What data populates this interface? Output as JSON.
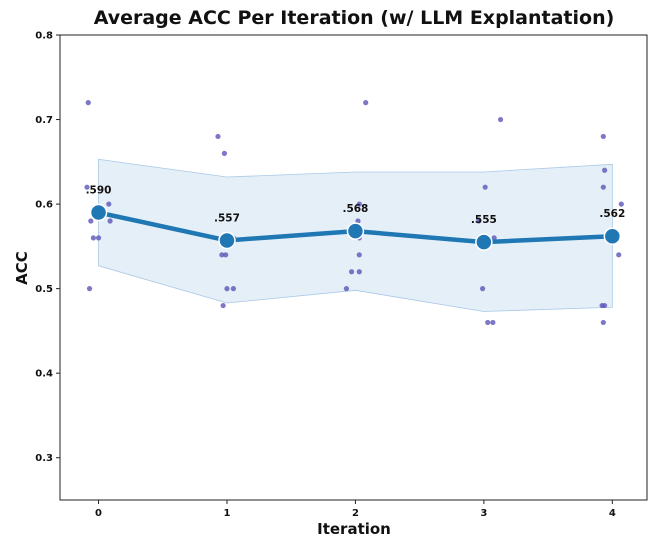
{
  "chart_data": {
    "type": "line",
    "title": "Average ACC Per Iteration (w/ LLM Explantation)",
    "xlabel": "Iteration",
    "ylabel": "ACC",
    "x": [
      0,
      1,
      2,
      3,
      4
    ],
    "xlim": [
      -0.3,
      4.27
    ],
    "ylim": [
      0.25,
      0.8
    ],
    "yticks": [
      "0.3",
      "0.4",
      "0.5",
      "0.6",
      "0.7",
      "0.8"
    ],
    "xticks": [
      "0",
      "1",
      "2",
      "3",
      "4"
    ],
    "series": [
      {
        "values": [
          0.59,
          0.557,
          0.568,
          0.555,
          0.562
        ],
        "labels": [
          ".590",
          ".557",
          ".568",
          ".555",
          ".562"
        ]
      }
    ],
    "band": {
      "lower": [
        0.527,
        0.483,
        0.498,
        0.473,
        0.478
      ],
      "upper": [
        0.653,
        0.632,
        0.638,
        0.638,
        0.647
      ]
    },
    "points": [
      [
        -0.08,
        0.72
      ],
      [
        -0.09,
        0.62
      ],
      [
        -0.06,
        0.58
      ],
      [
        -0.07,
        0.5
      ],
      [
        -0.04,
        0.56
      ],
      [
        0.0,
        0.56
      ],
      [
        0.08,
        0.6
      ],
      [
        0.09,
        0.58
      ],
      [
        0.93,
        0.68
      ],
      [
        0.98,
        0.66
      ],
      [
        0.96,
        0.54
      ],
      [
        0.99,
        0.54
      ],
      [
        0.97,
        0.48
      ],
      [
        1.0,
        0.5
      ],
      [
        1.05,
        0.5
      ],
      [
        1.05,
        0.56
      ],
      [
        2.08,
        0.72
      ],
      [
        2.03,
        0.6
      ],
      [
        2.02,
        0.58
      ],
      [
        2.03,
        0.56
      ],
      [
        2.03,
        0.54
      ],
      [
        1.97,
        0.52
      ],
      [
        2.03,
        0.52
      ],
      [
        1.93,
        0.5
      ],
      [
        3.13,
        0.7
      ],
      [
        3.01,
        0.62
      ],
      [
        2.96,
        0.58
      ],
      [
        3.0,
        0.56
      ],
      [
        3.08,
        0.56
      ],
      [
        2.99,
        0.5
      ],
      [
        3.03,
        0.46
      ],
      [
        3.07,
        0.46
      ],
      [
        3.93,
        0.68
      ],
      [
        3.94,
        0.64
      ],
      [
        3.93,
        0.62
      ],
      [
        4.07,
        0.6
      ],
      [
        4.05,
        0.54
      ],
      [
        3.92,
        0.48
      ],
      [
        3.94,
        0.48
      ],
      [
        3.93,
        0.46
      ]
    ],
    "grid": false,
    "colors": {
      "line": "#1f77b4",
      "band": "#dce9f5",
      "points": "#5b55b8"
    }
  }
}
